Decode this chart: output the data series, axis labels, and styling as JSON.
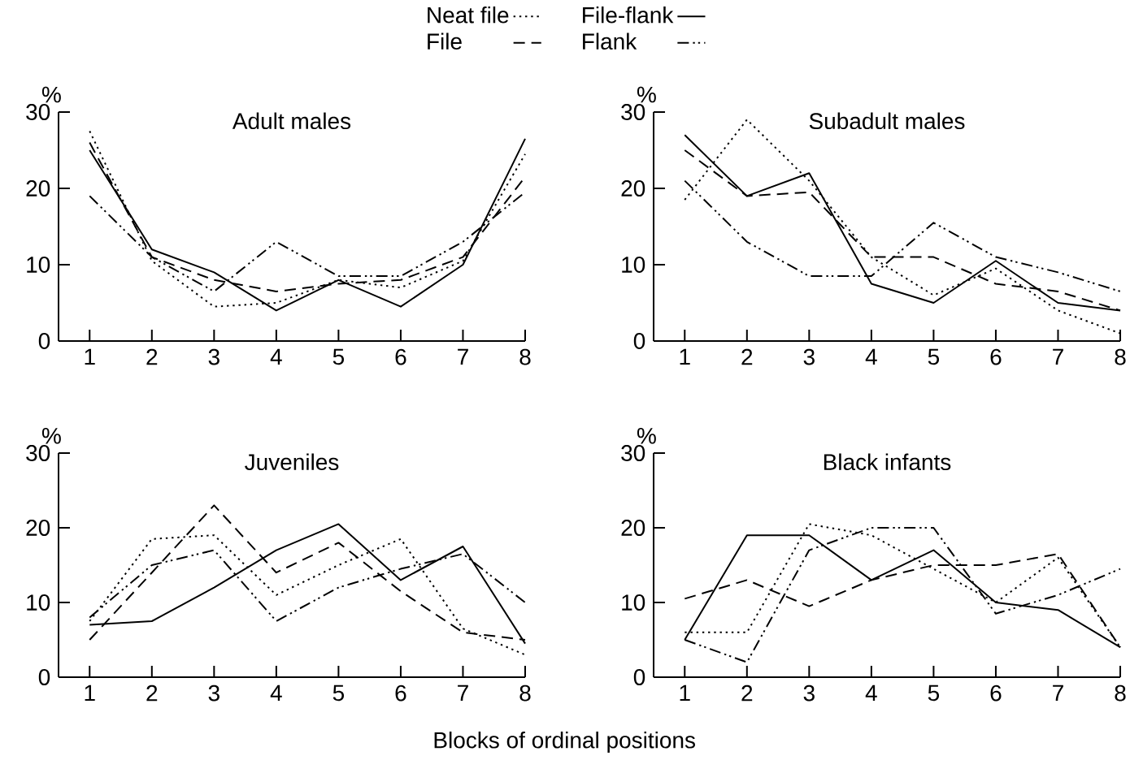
{
  "chart_data": [
    {
      "type": "line",
      "title": "Adult males",
      "ylabel": "%",
      "x": [
        1,
        2,
        3,
        4,
        5,
        6,
        7,
        8
      ],
      "xlim": [
        0.5,
        8
      ],
      "xticks": [
        1,
        2,
        3,
        4,
        5,
        6,
        7,
        8
      ],
      "ylim": [
        0,
        30
      ],
      "yticks": [
        0,
        10,
        20,
        30
      ],
      "legend": "top",
      "series": [
        {
          "name": "Neat file",
          "color": "#000000",
          "line_style": "dotted",
          "values": [
            27.5,
            10.5,
            4.5,
            5,
            8,
            7,
            10.5,
            24.5
          ]
        },
        {
          "name": "File-flank",
          "color": "#000000",
          "line_style": "solid",
          "values": [
            25,
            12,
            9,
            4,
            8,
            4.5,
            10,
            26.5
          ]
        },
        {
          "name": "File",
          "color": "#000000",
          "line_style": "dashed",
          "values": [
            26,
            11,
            8,
            6.5,
            7.5,
            8,
            11,
            21.5
          ]
        },
        {
          "name": "Flank",
          "color": "#000000",
          "line_style": "dashdotdot",
          "values": [
            19,
            11,
            6.5,
            13,
            8.5,
            8.5,
            13,
            19.5
          ]
        }
      ]
    },
    {
      "type": "line",
      "title": "Subadult males",
      "ylabel": "%",
      "x": [
        1,
        2,
        3,
        4,
        5,
        6,
        7,
        8
      ],
      "xlim": [
        0.5,
        8
      ],
      "xticks": [
        1,
        2,
        3,
        4,
        5,
        6,
        7,
        8
      ],
      "ylim": [
        0,
        30
      ],
      "yticks": [
        0,
        10,
        20,
        30
      ],
      "series": [
        {
          "color": "#000000",
          "line_style": "dotted",
          "values": [
            18.5,
            29,
            21,
            11,
            6,
            9.5,
            4,
            1
          ]
        },
        {
          "color": "#000000",
          "line_style": "solid",
          "values": [
            27,
            19,
            22,
            7.5,
            5,
            10.5,
            5,
            4
          ]
        },
        {
          "color": "#000000",
          "line_style": "dashed",
          "values": [
            25,
            19,
            19.5,
            11,
            11,
            7.5,
            6.5,
            4
          ]
        },
        {
          "color": "#000000",
          "line_style": "dashdotdot",
          "values": [
            21,
            13,
            8.5,
            8.5,
            15.5,
            11,
            9,
            6.5
          ]
        }
      ]
    },
    {
      "type": "line",
      "title": "Juveniles",
      "ylabel": "%",
      "xlabel": "Blocks of ordinal positions",
      "x": [
        1,
        2,
        3,
        4,
        5,
        6,
        7,
        8
      ],
      "xlim": [
        0.5,
        8
      ],
      "xticks": [
        1,
        2,
        3,
        4,
        5,
        6,
        7,
        8
      ],
      "ylim": [
        0,
        30
      ],
      "yticks": [
        0,
        10,
        20,
        30
      ],
      "series": [
        {
          "color": "#000000",
          "line_style": "dotted",
          "values": [
            7.5,
            18.5,
            19,
            11,
            15,
            18.5,
            6.5,
            3
          ]
        },
        {
          "color": "#000000",
          "line_style": "solid",
          "values": [
            7,
            7.5,
            12,
            17,
            20.5,
            13,
            17.5,
            4.5
          ]
        },
        {
          "color": "#000000",
          "line_style": "dashed",
          "values": [
            5,
            14,
            23,
            14,
            18,
            11.5,
            6,
            5
          ]
        },
        {
          "color": "#000000",
          "line_style": "dashdotdot",
          "values": [
            8,
            15,
            17,
            7.5,
            12,
            14.5,
            16.5,
            10
          ]
        }
      ]
    },
    {
      "type": "line",
      "title": "Black infants",
      "ylabel": "%",
      "x": [
        1,
        2,
        3,
        4,
        5,
        6,
        7,
        8
      ],
      "xlim": [
        0.5,
        8
      ],
      "xticks": [
        1,
        2,
        3,
        4,
        5,
        6,
        7,
        8
      ],
      "ylim": [
        0,
        30
      ],
      "yticks": [
        0,
        10,
        20,
        30
      ],
      "series": [
        {
          "color": "#000000",
          "line_style": "dotted",
          "values": [
            6,
            6,
            20.5,
            19,
            14.5,
            10,
            16,
            4
          ]
        },
        {
          "color": "#000000",
          "line_style": "solid",
          "values": [
            5,
            19,
            19,
            13,
            17,
            10,
            9,
            4
          ]
        },
        {
          "color": "#000000",
          "line_style": "dashed",
          "values": [
            10.5,
            13,
            9.5,
            13,
            15,
            15,
            16.5,
            4
          ]
        },
        {
          "color": "#000000",
          "line_style": "dashdotdot",
          "values": [
            5,
            2,
            17,
            20,
            20,
            8.5,
            11,
            14.5
          ]
        }
      ]
    }
  ]
}
